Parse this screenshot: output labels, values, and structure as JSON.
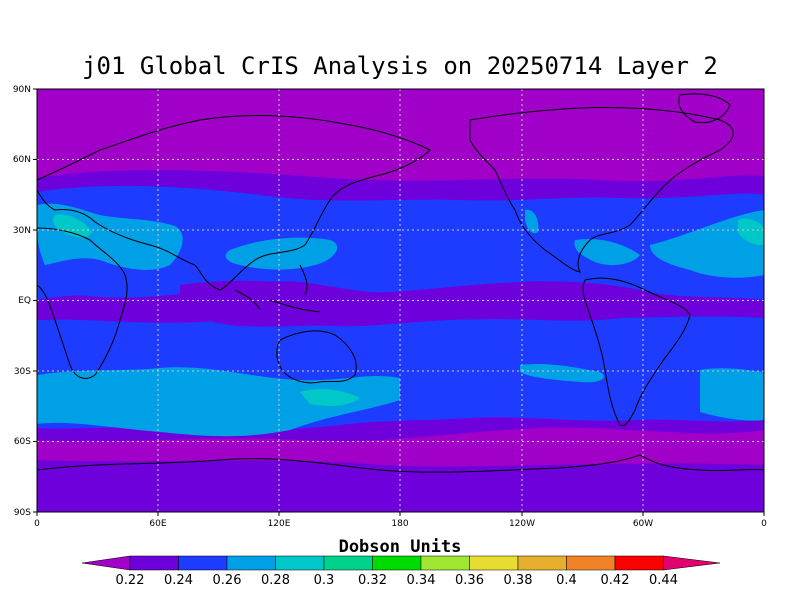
{
  "map": {
    "title": "j01 Global CrIS Analysis on 20250714 Layer 2",
    "lat_ticks": [
      "90N",
      "60N",
      "30N",
      "EQ",
      "30S",
      "60S",
      "90S"
    ],
    "lon_ticks": [
      "0",
      "60E",
      "120E",
      "180",
      "120W",
      "60W",
      "0"
    ],
    "colorbar": {
      "title": "Dobson Units",
      "labels": [
        "0.22",
        "0.24",
        "0.26",
        "0.28",
        "0.3",
        "0.32",
        "0.34",
        "0.36",
        "0.38",
        "0.4",
        "0.42",
        "0.44"
      ],
      "colors": [
        "#a000c8",
        "#6e00dc",
        "#1e3cff",
        "#00a0e6",
        "#00c8c8",
        "#00d28c",
        "#00dc00",
        "#a0e632",
        "#e6dc32",
        "#e6af2d",
        "#f08228",
        "#fa0000",
        "#e0006e"
      ]
    },
    "field_colors": {
      "low": "#a000c8",
      "mid_low": "#6e00dc",
      "mid": "#1e3cff",
      "high": "#00a0e6",
      "higher": "#00c8c8"
    }
  }
}
